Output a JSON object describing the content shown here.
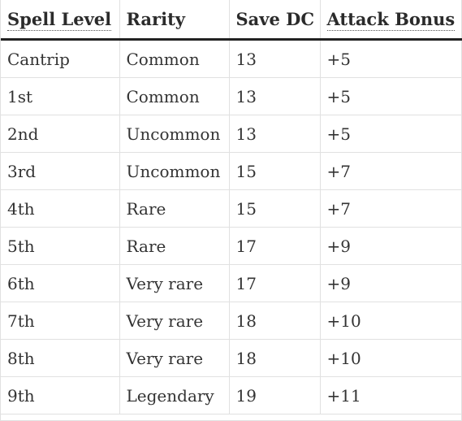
{
  "table": {
    "headers": [
      "Spell Level",
      "Rarity",
      "Save DC",
      "Attack Bonus"
    ],
    "rows": [
      [
        "Cantrip",
        "Common",
        "13",
        "+5"
      ],
      [
        "1st",
        "Common",
        "13",
        "+5"
      ],
      [
        "2nd",
        "Uncommon",
        "13",
        "+5"
      ],
      [
        "3rd",
        "Uncommon",
        "15",
        "+7"
      ],
      [
        "4th",
        "Rare",
        "15",
        "+7"
      ],
      [
        "5th",
        "Rare",
        "17",
        "+9"
      ],
      [
        "6th",
        "Very rare",
        "17",
        "+9"
      ],
      [
        "7th",
        "Very rare",
        "18",
        "+10"
      ],
      [
        "8th",
        "Very rare",
        "18",
        "+10"
      ],
      [
        "9th",
        "Legendary",
        "19",
        "+11"
      ]
    ]
  }
}
